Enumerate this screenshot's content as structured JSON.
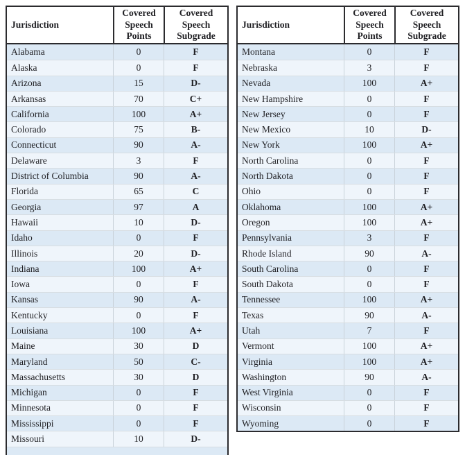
{
  "header": {
    "jurisdiction": "Jurisdiction",
    "points": "Covered\nSpeech\nPoints",
    "subgrade": "Covered\nSpeech\nSubgrade"
  },
  "colors": {
    "row_alt_dark": "#dce9f5",
    "row_alt_light": "#eff5fb",
    "outer_border": "#2b2b2e",
    "grid_line": "#c9d2d9",
    "text": "#1f1f23"
  },
  "tables": [
    {
      "rows": [
        [
          "Alabama",
          "0",
          "F"
        ],
        [
          "Alaska",
          "0",
          "F"
        ],
        [
          "Arizona",
          "15",
          "D-"
        ],
        [
          "Arkansas",
          "70",
          "C+"
        ],
        [
          "California",
          "100",
          "A+"
        ],
        [
          "Colorado",
          "75",
          "B-"
        ],
        [
          "Connecticut",
          "90",
          "A-"
        ],
        [
          "Delaware",
          "3",
          "F"
        ],
        [
          "District of Columbia",
          "90",
          "A-"
        ],
        [
          "Florida",
          "65",
          "C"
        ],
        [
          "Georgia",
          "97",
          "A"
        ],
        [
          "Hawaii",
          "10",
          "D-"
        ],
        [
          "Idaho",
          "0",
          "F"
        ],
        [
          "Illinois",
          "20",
          "D-"
        ],
        [
          "Indiana",
          "100",
          "A+"
        ],
        [
          "Iowa",
          "0",
          "F"
        ],
        [
          "Kansas",
          "90",
          "A-"
        ],
        [
          "Kentucky",
          "0",
          "F"
        ],
        [
          "Louisiana",
          "100",
          "A+"
        ],
        [
          "Maine",
          "30",
          "D"
        ],
        [
          "Maryland",
          "50",
          "C-"
        ],
        [
          "Massachusetts",
          "30",
          "D"
        ],
        [
          "Michigan",
          "0",
          "F"
        ],
        [
          "Minnesota",
          "0",
          "F"
        ],
        [
          "Mississippi",
          "0",
          "F"
        ],
        [
          "Missouri",
          "10",
          "D-"
        ]
      ]
    },
    {
      "rows": [
        [
          "Montana",
          "0",
          "F"
        ],
        [
          "Nebraska",
          "3",
          "F"
        ],
        [
          "Nevada",
          "100",
          "A+"
        ],
        [
          "New Hampshire",
          "0",
          "F"
        ],
        [
          "New Jersey",
          "0",
          "F"
        ],
        [
          "New Mexico",
          "10",
          "D-"
        ],
        [
          "New York",
          "100",
          "A+"
        ],
        [
          "North Carolina",
          "0",
          "F"
        ],
        [
          "North Dakota",
          "0",
          "F"
        ],
        [
          "Ohio",
          "0",
          "F"
        ],
        [
          "Oklahoma",
          "100",
          "A+"
        ],
        [
          "Oregon",
          "100",
          "A+"
        ],
        [
          "Pennsylvania",
          "3",
          "F"
        ],
        [
          "Rhode Island",
          "90",
          "A-"
        ],
        [
          "South Carolina",
          "0",
          "F"
        ],
        [
          "South Dakota",
          "0",
          "F"
        ],
        [
          "Tennessee",
          "100",
          "A+"
        ],
        [
          "Texas",
          "90",
          "A-"
        ],
        [
          "Utah",
          "7",
          "F"
        ],
        [
          "Vermont",
          "100",
          "A+"
        ],
        [
          "Virginia",
          "100",
          "A+"
        ],
        [
          "Washington",
          "90",
          "A-"
        ],
        [
          "West Virginia",
          "0",
          "F"
        ],
        [
          "Wisconsin",
          "0",
          "F"
        ],
        [
          "Wyoming",
          "0",
          "F"
        ]
      ]
    }
  ]
}
